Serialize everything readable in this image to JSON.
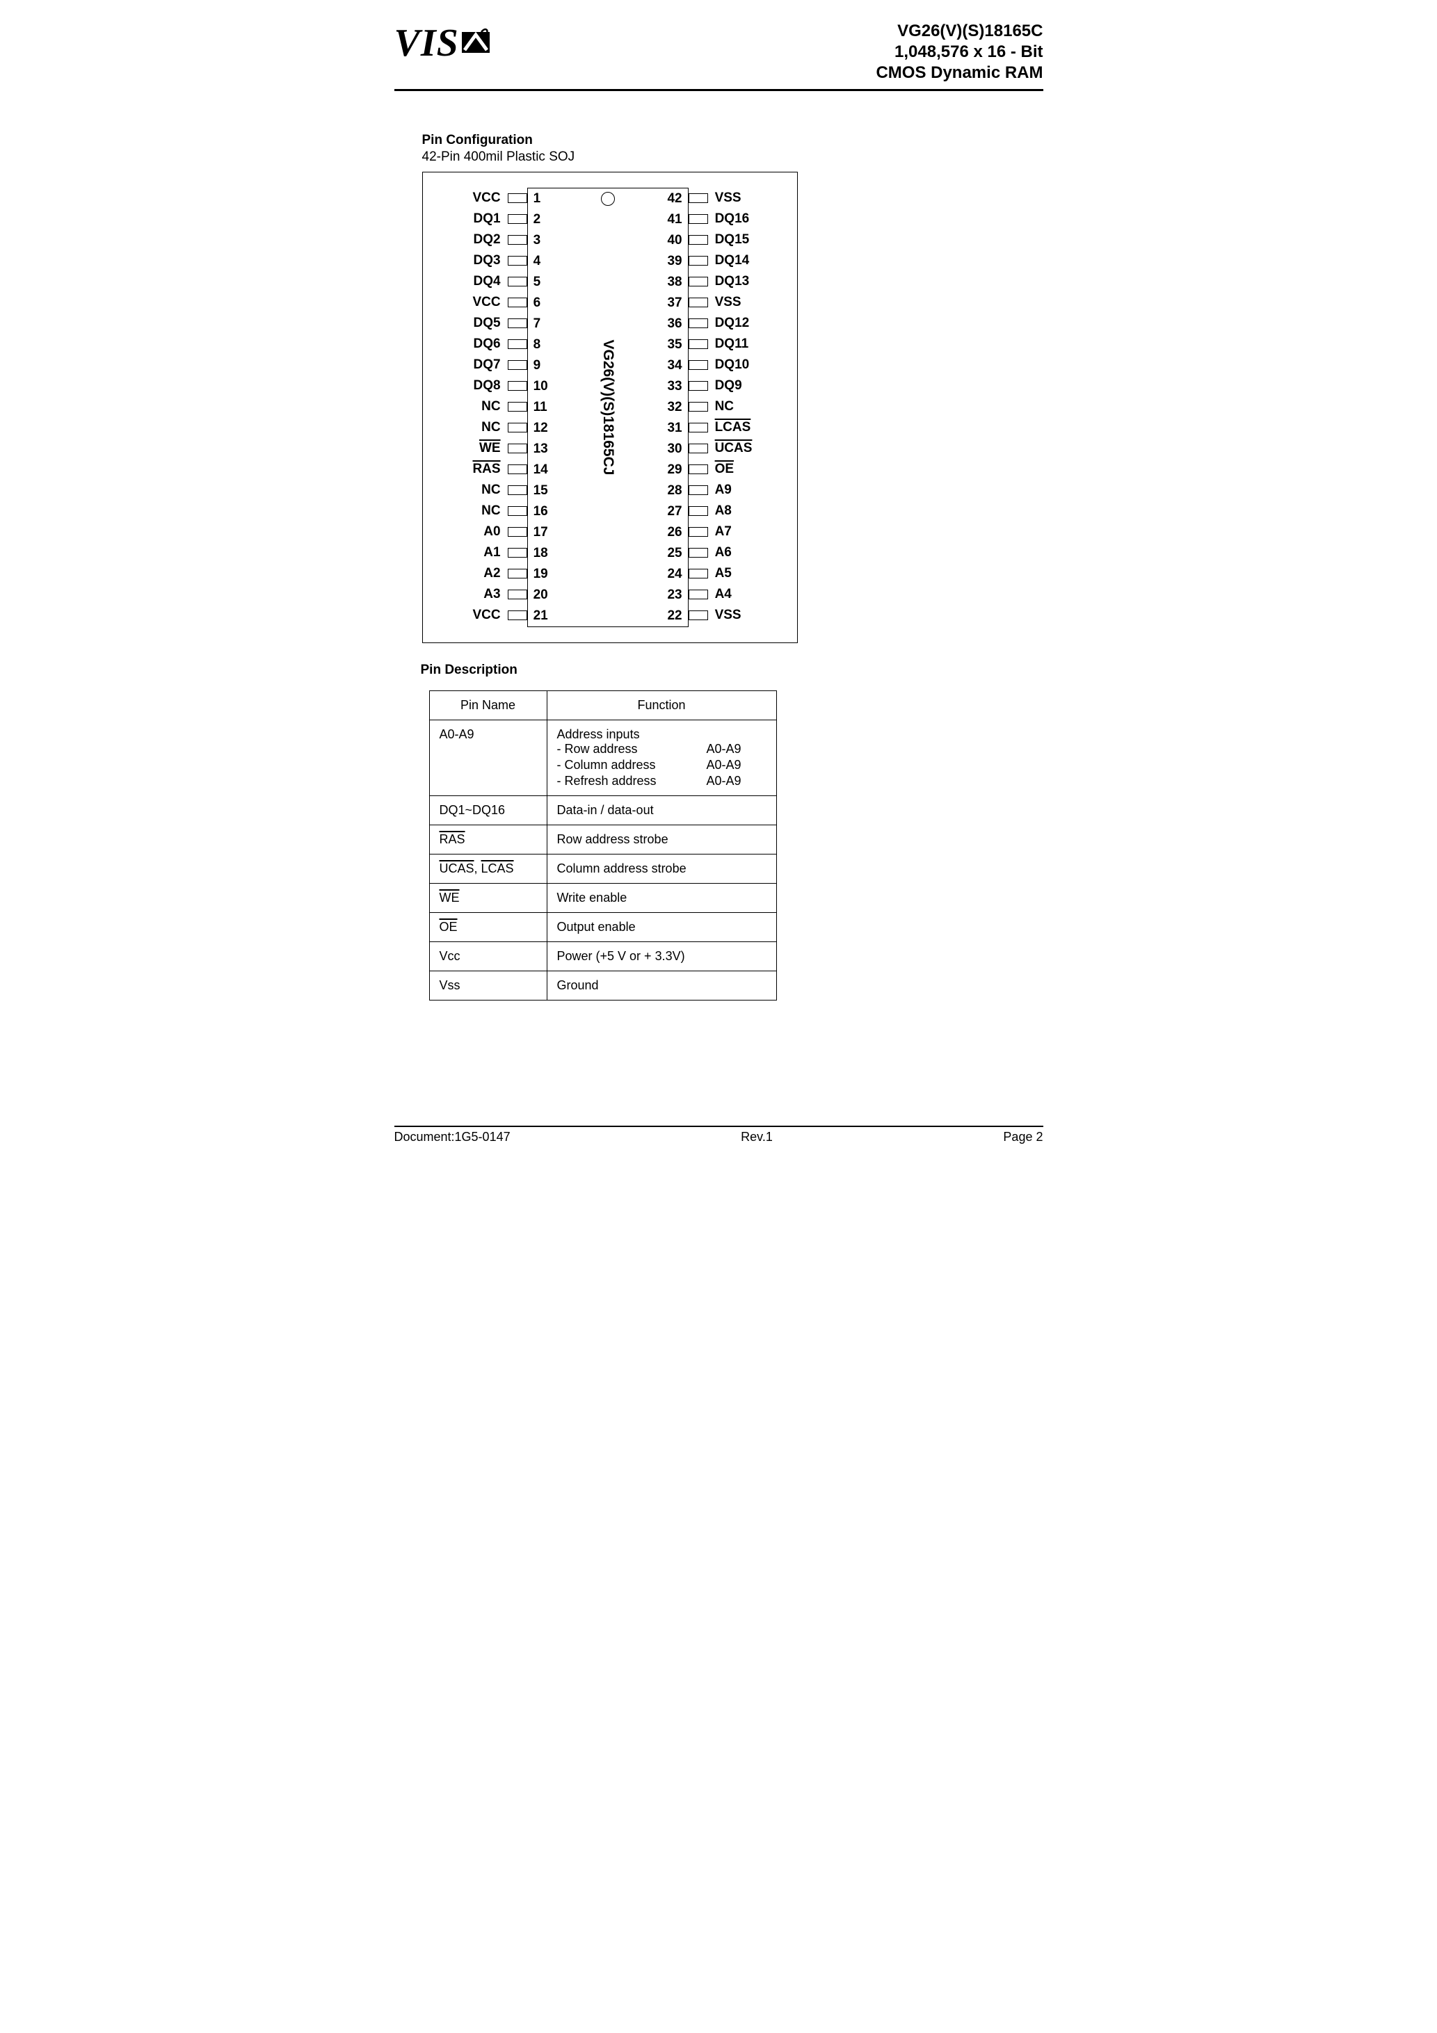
{
  "header": {
    "logo_text": "VIS",
    "line1": "VG26(V)(S)18165C",
    "line2": "1,048,576 x 16 - Bit",
    "line3": "CMOS Dynamic RAM"
  },
  "pin_config": {
    "title": "Pin Configuration",
    "subtitle": "42-Pin 400mil Plastic SOJ",
    "part_number": "VG26(V)(S)18165CJ",
    "left": [
      {
        "num": "1",
        "label": "VCC",
        "overline": false
      },
      {
        "num": "2",
        "label": "DQ1",
        "overline": false
      },
      {
        "num": "3",
        "label": "DQ2",
        "overline": false
      },
      {
        "num": "4",
        "label": "DQ3",
        "overline": false
      },
      {
        "num": "5",
        "label": "DQ4",
        "overline": false
      },
      {
        "num": "6",
        "label": "VCC",
        "overline": false
      },
      {
        "num": "7",
        "label": "DQ5",
        "overline": false
      },
      {
        "num": "8",
        "label": "DQ6",
        "overline": false
      },
      {
        "num": "9",
        "label": "DQ7",
        "overline": false
      },
      {
        "num": "10",
        "label": "DQ8",
        "overline": false
      },
      {
        "num": "11",
        "label": "NC",
        "overline": false
      },
      {
        "num": "12",
        "label": "NC",
        "overline": false
      },
      {
        "num": "13",
        "label": "WE",
        "overline": true
      },
      {
        "num": "14",
        "label": "RAS",
        "overline": true
      },
      {
        "num": "15",
        "label": "NC",
        "overline": false
      },
      {
        "num": "16",
        "label": "NC",
        "overline": false
      },
      {
        "num": "17",
        "label": "A0",
        "overline": false
      },
      {
        "num": "18",
        "label": "A1",
        "overline": false
      },
      {
        "num": "19",
        "label": "A2",
        "overline": false
      },
      {
        "num": "20",
        "label": "A3",
        "overline": false
      },
      {
        "num": "21",
        "label": "VCC",
        "overline": false
      }
    ],
    "right": [
      {
        "num": "42",
        "label": "VSS",
        "overline": false
      },
      {
        "num": "41",
        "label": "DQ16",
        "overline": false
      },
      {
        "num": "40",
        "label": "DQ15",
        "overline": false
      },
      {
        "num": "39",
        "label": "DQ14",
        "overline": false
      },
      {
        "num": "38",
        "label": "DQ13",
        "overline": false
      },
      {
        "num": "37",
        "label": "VSS",
        "overline": false
      },
      {
        "num": "36",
        "label": "DQ12",
        "overline": false
      },
      {
        "num": "35",
        "label": "DQ11",
        "overline": false
      },
      {
        "num": "34",
        "label": "DQ10",
        "overline": false
      },
      {
        "num": "33",
        "label": "DQ9",
        "overline": false
      },
      {
        "num": "32",
        "label": "NC",
        "overline": false
      },
      {
        "num": "31",
        "label": "LCAS",
        "overline": true
      },
      {
        "num": "30",
        "label": "UCAS",
        "overline": true
      },
      {
        "num": "29",
        "label": "OE",
        "overline": true
      },
      {
        "num": "28",
        "label": "A9",
        "overline": false
      },
      {
        "num": "27",
        "label": "A8",
        "overline": false
      },
      {
        "num": "26",
        "label": "A7",
        "overline": false
      },
      {
        "num": "25",
        "label": "A6",
        "overline": false
      },
      {
        "num": "24",
        "label": "A5",
        "overline": false
      },
      {
        "num": "23",
        "label": "A4",
        "overline": false
      },
      {
        "num": "22",
        "label": "VSS",
        "overline": false
      }
    ]
  },
  "pin_desc": {
    "title": "Pin Description",
    "header_name": "Pin Name",
    "header_func": "Function",
    "rows": [
      {
        "name": "A0-A9",
        "overline": false,
        "func_lines": [
          "Address inputs"
        ],
        "addr_rows": [
          {
            "l": "- Row address",
            "r": "A0-A9"
          },
          {
            "l": "- Column address",
            "r": "A0-A9"
          },
          {
            "l": "- Refresh address",
            "r": "A0-A9"
          }
        ]
      },
      {
        "name": "DQ1~DQ16",
        "overline": false,
        "func": "Data-in / data-out"
      },
      {
        "name": "RAS",
        "overline": true,
        "func": "Row address strobe"
      },
      {
        "name_parts": [
          {
            "t": "UCAS",
            "ol": true
          },
          {
            "t": ", ",
            "ol": false
          },
          {
            "t": "LCAS",
            "ol": true
          }
        ],
        "func": "Column address strobe"
      },
      {
        "name": "WE",
        "overline": true,
        "func": "Write enable"
      },
      {
        "name": "OE",
        "overline": true,
        "func": "Output enable"
      },
      {
        "name": "Vcc",
        "overline": false,
        "func": "Power (+5 V or + 3.3V)"
      },
      {
        "name": "Vss",
        "overline": false,
        "func": "Ground"
      }
    ]
  },
  "footer": {
    "left": "Document:1G5-0147",
    "center": "Rev.1",
    "right": "Page 2"
  },
  "colors": {
    "text": "#000000",
    "background": "#ffffff",
    "rule": "#000000"
  }
}
